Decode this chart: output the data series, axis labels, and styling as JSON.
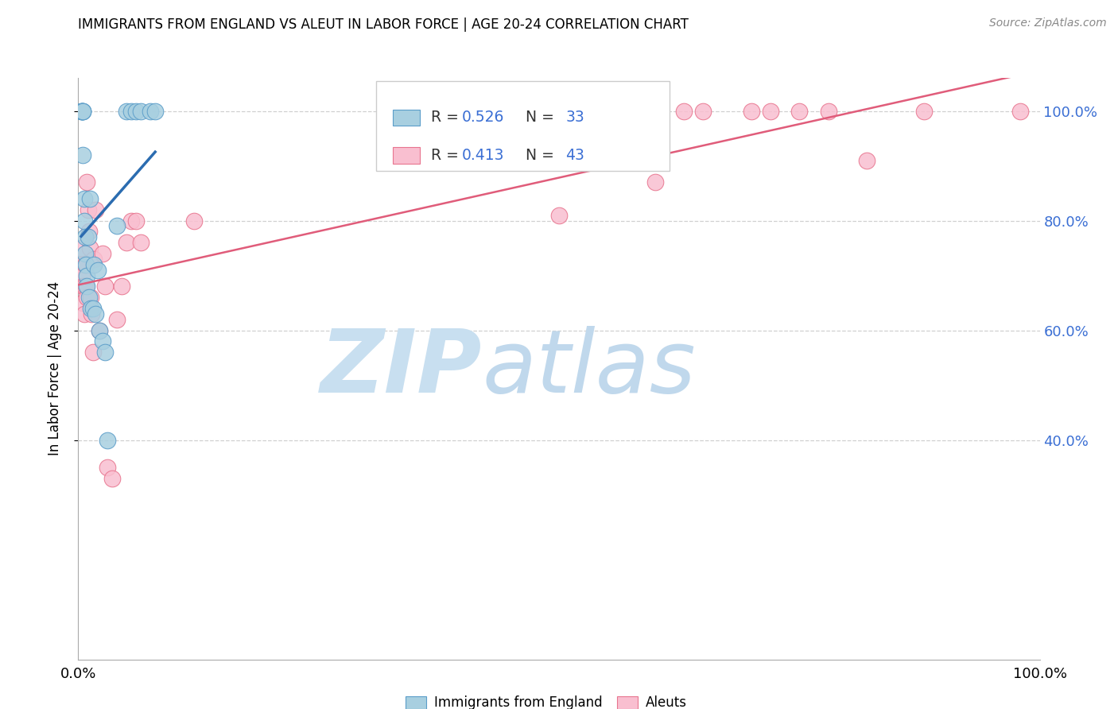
{
  "title": "IMMIGRANTS FROM ENGLAND VS ALEUT IN LABOR FORCE | AGE 20-24 CORRELATION CHART",
  "source": "Source: ZipAtlas.com",
  "ylabel": "In Labor Force | Age 20-24",
  "xlim": [
    0.0,
    1.0
  ],
  "ylim": [
    0.0,
    1.06
  ],
  "ytick_positions": [
    0.4,
    0.6,
    0.8,
    1.0
  ],
  "ytick_labels": [
    "40.0%",
    "60.0%",
    "80.0%",
    "100.0%"
  ],
  "xtick_positions": [
    0.0,
    1.0
  ],
  "xtick_labels": [
    "0.0%",
    "100.0%"
  ],
  "legend_label1": "Immigrants from England",
  "legend_label2": "Aleuts",
  "r1": "0.526",
  "n1": "33",
  "r2": "0.413",
  "n2": "43",
  "color_blue": "#a8cfe0",
  "color_pink": "#f9bfd0",
  "edge_blue": "#5b9dc9",
  "edge_pink": "#e8758f",
  "line_blue": "#2b6cb0",
  "line_pink": "#e05c7a",
  "text_blue": "#3b6fd4",
  "watermark_zip": "#c8dff0",
  "watermark_atlas": "#c0d8ec",
  "blue_x": [
    0.003,
    0.004,
    0.004,
    0.005,
    0.005,
    0.005,
    0.005,
    0.006,
    0.006,
    0.007,
    0.007,
    0.008,
    0.009,
    0.009,
    0.01,
    0.011,
    0.012,
    0.013,
    0.015,
    0.016,
    0.018,
    0.02,
    0.022,
    0.025,
    0.028,
    0.03,
    0.04,
    0.05,
    0.055,
    0.06,
    0.065,
    0.075,
    0.08
  ],
  "blue_y": [
    1.0,
    1.0,
    1.0,
    1.0,
    1.0,
    1.0,
    0.92,
    0.84,
    0.8,
    0.77,
    0.74,
    0.72,
    0.7,
    0.68,
    0.77,
    0.66,
    0.84,
    0.64,
    0.64,
    0.72,
    0.63,
    0.71,
    0.6,
    0.58,
    0.56,
    0.4,
    0.79,
    1.0,
    1.0,
    1.0,
    1.0,
    1.0,
    1.0
  ],
  "pink_x": [
    0.003,
    0.004,
    0.004,
    0.005,
    0.005,
    0.006,
    0.006,
    0.007,
    0.008,
    0.009,
    0.009,
    0.01,
    0.011,
    0.012,
    0.013,
    0.014,
    0.015,
    0.016,
    0.018,
    0.022,
    0.025,
    0.028,
    0.03,
    0.035,
    0.04,
    0.045,
    0.05,
    0.055,
    0.06,
    0.065,
    0.12,
    0.5,
    0.55,
    0.6,
    0.63,
    0.65,
    0.7,
    0.72,
    0.75,
    0.78,
    0.82,
    0.88,
    0.98
  ],
  "pink_y": [
    0.75,
    0.72,
    0.7,
    0.68,
    0.65,
    0.68,
    0.63,
    0.72,
    0.68,
    0.87,
    0.66,
    0.82,
    0.78,
    0.75,
    0.66,
    0.63,
    0.56,
    0.73,
    0.82,
    0.6,
    0.74,
    0.68,
    0.35,
    0.33,
    0.62,
    0.68,
    0.76,
    0.8,
    0.8,
    0.76,
    0.8,
    0.81,
    1.0,
    0.87,
    1.0,
    1.0,
    1.0,
    1.0,
    1.0,
    1.0,
    0.91,
    1.0,
    1.0
  ]
}
